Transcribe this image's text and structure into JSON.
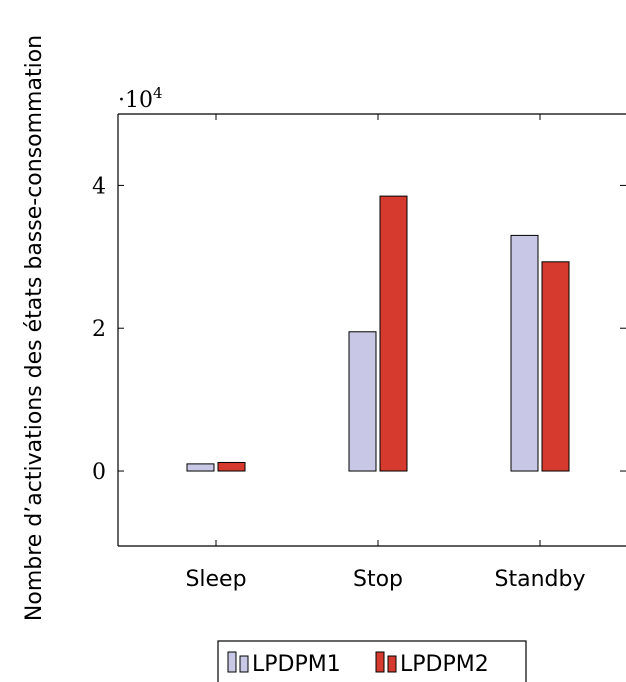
{
  "chart_data": {
    "type": "bar",
    "categories": [
      "Sleep",
      "Stop",
      "Standby"
    ],
    "series": [
      {
        "name": "LPDPM1",
        "values": [
          1000,
          19500,
          33000
        ],
        "color": "#c8c8e6"
      },
      {
        "name": "LPDPM2",
        "values": [
          1200,
          38500,
          29300
        ],
        "color": "#d63a2f"
      }
    ],
    "ylabel": "Nombre d’activations des états basse-consommation",
    "xlabel": "",
    "ylim": [
      -10500,
      50000
    ],
    "yticks": [
      0,
      20000,
      40000
    ],
    "ytick_labels": [
      "0",
      "2",
      "4"
    ],
    "y_multiplier": {
      "base": "·10",
      "exponent": "4"
    },
    "grid": false,
    "legend_position": "bottom-center"
  }
}
